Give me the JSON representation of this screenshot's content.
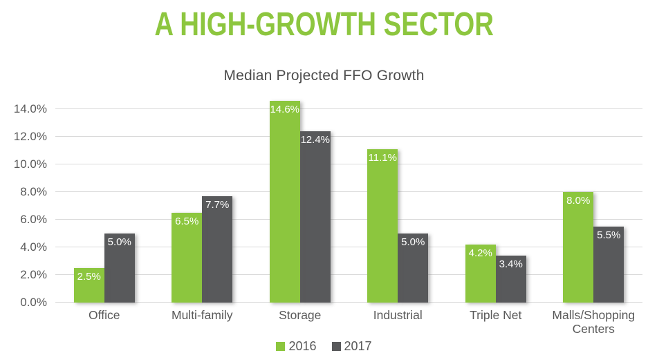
{
  "title": "A HIGH-GROWTH SECTOR",
  "colors": {
    "title_green": "#8DC63F",
    "bar_green": "#8CC63E",
    "bar_gray": "#58595B",
    "axis_text": "#595959",
    "gridline": "#D9D9D9",
    "chart_title_text": "#4D4D4D",
    "bar_value_label": "#FFFFFF"
  },
  "chart_data": {
    "type": "bar",
    "title": "Median Projected FFO Growth",
    "categories": [
      "Office",
      "Multi-family",
      "Storage",
      "Industrial",
      "Triple Net",
      "Malls/Shopping Centers"
    ],
    "series": [
      {
        "name": "2016",
        "color": "#8CC63E",
        "values": [
          2.5,
          6.5,
          14.6,
          11.1,
          4.2,
          8.0
        ],
        "labels": [
          "2.5%",
          "6.5%",
          "14.6%",
          "11.1%",
          "4.2%",
          "8.0%"
        ]
      },
      {
        "name": "2017",
        "color": "#58595B",
        "values": [
          5.0,
          7.7,
          12.4,
          5.0,
          3.4,
          5.5
        ],
        "labels": [
          "5.0%",
          "7.7%",
          "12.4%",
          "5.0%",
          "3.4%",
          "5.5%"
        ]
      }
    ],
    "y_axis": {
      "min": 0,
      "max": 14,
      "step": 2,
      "tick_labels": [
        "0.0%",
        "2.0%",
        "4.0%",
        "6.0%",
        "8.0%",
        "10.0%",
        "12.0%",
        "14.0%"
      ]
    },
    "ylim": [
      0,
      15
    ],
    "grid": true,
    "value_labels_position": "inside-top",
    "legend": {
      "position": "bottom",
      "entries": [
        "2016",
        "2017"
      ]
    }
  }
}
